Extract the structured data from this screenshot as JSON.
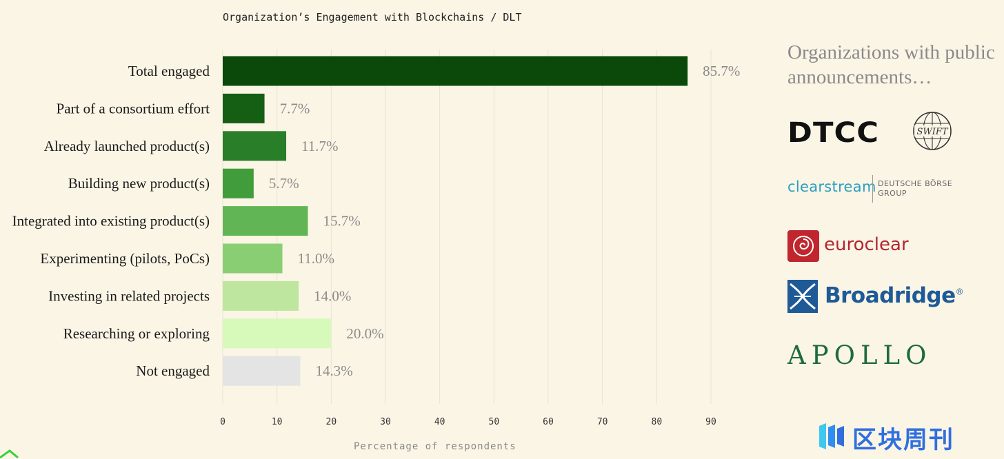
{
  "chart_data": {
    "type": "bar",
    "orientation": "horizontal",
    "title": "Organization’s Engagement with Blockchains / DLT",
    "xlabel": "Percentage of respondents",
    "ylabel": "",
    "xlim": [
      0,
      90
    ],
    "xticks": [
      0,
      10,
      20,
      30,
      40,
      50,
      60,
      70,
      80,
      90
    ],
    "grid": true,
    "categories": [
      "Total engaged",
      "Part of a consortium effort",
      "Already launched product(s)",
      "Building new product(s)",
      "Integrated into existing product(s)",
      "Experimenting (pilots, PoCs)",
      "Investing in related projects",
      "Researching or exploring",
      "Not engaged"
    ],
    "values": [
      85.7,
      7.7,
      11.7,
      5.7,
      15.7,
      11.0,
      14.0,
      20.0,
      14.3
    ],
    "value_labels": [
      "85.7%",
      "7.7%",
      "11.7%",
      "5.7%",
      "15.7%",
      "11.0%",
      "14.0%",
      "20.0%",
      "14.3%"
    ],
    "colors": [
      "#024302",
      "#0d5a0d",
      "#227a22",
      "#3b9a35",
      "#5db34f",
      "#86cc6f",
      "#bce59c",
      "#d6fab8",
      "#e3e3e3"
    ]
  },
  "sidebar": {
    "title": "Organizations with public announcements…",
    "logos": {
      "dtcc": "DTCC",
      "swift": "SWIFT",
      "clearstream": "clearstream",
      "clearstream_group_line1": "DEUTSCHE BÖRSE",
      "clearstream_group_line2": "GROUP",
      "euroclear": "euroclear",
      "broadridge": "Broadridge",
      "broadridge_mark": "®",
      "apollo": "APOLLO"
    }
  },
  "watermark": {
    "text": "区块周刊"
  }
}
